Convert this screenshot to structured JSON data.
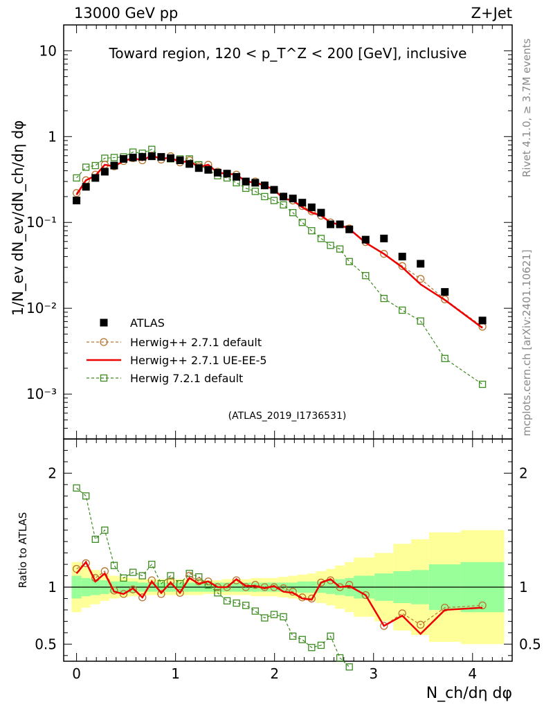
{
  "header": {
    "energy": "13000 GeV pp",
    "process": "Z+Jet"
  },
  "side": {
    "rivet": "Rivet 4.1.0, ≥ 3.7M events",
    "mcplots": "mcplots.cern.ch [arXiv:2401.10621]"
  },
  "chart_data": [
    {
      "type": "scatter",
      "panel": "main",
      "title": "Toward region, 120 < p_T^Z < 200 [GeV], inclusive",
      "analysis_label": "(ATLAS_2019_I1736531)",
      "ylabel": "1/N_ev dN_ev/dN_ch/dη dφ",
      "yscale": "log",
      "ylim": [
        0.0003,
        20
      ],
      "xlim": [
        -0.13,
        4.4
      ],
      "yticks": [
        {
          "value": 10,
          "label": "10"
        },
        {
          "value": 1,
          "label": "1"
        },
        {
          "value": 0.1,
          "label": "10⁻¹"
        },
        {
          "value": 0.01,
          "label": "10⁻²"
        },
        {
          "value": 0.001,
          "label": "10⁻³"
        }
      ],
      "x": [
        0.0,
        0.095,
        0.19,
        0.285,
        0.38,
        0.475,
        0.57,
        0.665,
        0.76,
        0.855,
        0.95,
        1.045,
        1.14,
        1.235,
        1.33,
        1.425,
        1.52,
        1.615,
        1.71,
        1.805,
        1.9,
        1.995,
        2.09,
        2.185,
        2.28,
        2.375,
        2.47,
        2.565,
        2.66,
        2.755,
        2.92,
        3.105,
        3.29,
        3.475,
        3.72,
        4.1
      ],
      "series": [
        {
          "name": "ATLAS",
          "marker": "square",
          "color": "#000000",
          "values": [
            0.18,
            0.26,
            0.33,
            0.39,
            0.46,
            0.55,
            0.57,
            0.58,
            0.59,
            0.58,
            0.56,
            0.53,
            0.48,
            0.43,
            0.41,
            0.38,
            0.37,
            0.34,
            0.3,
            0.29,
            0.27,
            0.24,
            0.2,
            0.19,
            0.17,
            0.15,
            0.13,
            0.095,
            0.095,
            0.083,
            0.063,
            0.065,
            0.04,
            0.033,
            0.0155,
            0.0072
          ]
        },
        {
          "name": "Herwig++ 2.7.1 default",
          "marker": "circle",
          "color": "#b8732e",
          "dash": "4,3",
          "values": [
            0.22,
            0.31,
            0.36,
            0.47,
            0.45,
            0.52,
            0.56,
            0.53,
            0.6,
            0.54,
            0.59,
            0.5,
            0.53,
            0.45,
            0.47,
            0.39,
            0.37,
            0.36,
            0.3,
            0.3,
            0.27,
            0.24,
            0.2,
            0.18,
            0.155,
            0.135,
            0.12,
            0.1,
            0.095,
            0.085,
            0.059,
            0.043,
            0.031,
            0.022,
            0.0127,
            0.0061
          ]
        },
        {
          "name": "Herwig++ 2.7.1 UE-EE-5",
          "marker": "line",
          "color": "#ee0000",
          "values": [
            0.21,
            0.31,
            0.35,
            0.47,
            0.45,
            0.52,
            0.56,
            0.53,
            0.6,
            0.55,
            0.57,
            0.5,
            0.52,
            0.44,
            0.47,
            0.38,
            0.37,
            0.36,
            0.3,
            0.29,
            0.27,
            0.24,
            0.19,
            0.18,
            0.15,
            0.13,
            0.12,
            0.1,
            0.094,
            0.084,
            0.058,
            0.043,
            0.03,
            0.019,
            0.0125,
            0.0059
          ]
        },
        {
          "name": "Herwig 7.2.1 default",
          "marker": "open-square",
          "color": "#3a8a1e",
          "dash": "4,3",
          "values": [
            0.33,
            0.44,
            0.46,
            0.56,
            0.57,
            0.58,
            0.66,
            0.64,
            0.71,
            0.58,
            0.55,
            0.55,
            0.55,
            0.47,
            0.41,
            0.35,
            0.33,
            0.29,
            0.25,
            0.23,
            0.2,
            0.18,
            0.16,
            0.13,
            0.1,
            0.08,
            0.065,
            0.054,
            0.049,
            0.035,
            0.024,
            0.013,
            0.0095,
            0.0071,
            0.0026,
            0.0013
          ]
        }
      ],
      "legend_position": "left-middle"
    },
    {
      "type": "line",
      "panel": "ratio",
      "ylabel": "Ratio to ATLAS",
      "xlabel": "N_ch/dη dφ",
      "ylim": [
        0.35,
        2.3
      ],
      "yticks": [
        {
          "value": 2,
          "label": "2"
        },
        {
          "value": 1,
          "label": "1"
        },
        {
          "value": 0.5,
          "label": "0.5"
        }
      ],
      "xticks": [
        {
          "value": 0,
          "label": "0"
        },
        {
          "value": 1,
          "label": "1"
        },
        {
          "value": 2,
          "label": "2"
        },
        {
          "value": 3,
          "label": "3"
        },
        {
          "value": 4,
          "label": "4"
        }
      ],
      "band_edges": [
        -0.05,
        0.05,
        0.14,
        0.24,
        0.33,
        0.43,
        0.52,
        0.62,
        0.71,
        0.81,
        0.9,
        1.0,
        1.09,
        1.19,
        1.28,
        1.38,
        1.47,
        1.57,
        1.66,
        1.76,
        1.85,
        1.95,
        2.04,
        2.14,
        2.23,
        2.33,
        2.42,
        2.52,
        2.61,
        2.71,
        2.8,
        3.01,
        3.2,
        3.38,
        3.56,
        3.88,
        4.32
      ],
      "band_inner": [
        0.1,
        0.08,
        0.07,
        0.06,
        0.05,
        0.05,
        0.05,
        0.04,
        0.04,
        0.04,
        0.04,
        0.04,
        0.04,
        0.04,
        0.04,
        0.04,
        0.04,
        0.04,
        0.04,
        0.04,
        0.04,
        0.04,
        0.04,
        0.04,
        0.05,
        0.05,
        0.05,
        0.06,
        0.07,
        0.08,
        0.1,
        0.12,
        0.14,
        0.15,
        0.2,
        0.22
      ],
      "band_outer": [
        0.22,
        0.18,
        0.15,
        0.12,
        0.1,
        0.09,
        0.08,
        0.07,
        0.07,
        0.07,
        0.07,
        0.07,
        0.07,
        0.07,
        0.06,
        0.06,
        0.07,
        0.07,
        0.07,
        0.08,
        0.08,
        0.08,
        0.09,
        0.1,
        0.11,
        0.12,
        0.14,
        0.16,
        0.19,
        0.22,
        0.26,
        0.3,
        0.38,
        0.42,
        0.48,
        0.5
      ],
      "band_colors": {
        "inner": "#99ff99",
        "outer": "#ffff99"
      },
      "series": [
        {
          "name": "Herwig++ 2.7.1 default",
          "values": [
            1.16,
            1.21,
            1.08,
            1.14,
            0.97,
            0.94,
            0.98,
            0.91,
            1.06,
            0.94,
            1.05,
            0.95,
            1.1,
            1.05,
            1.05,
            1.0,
            1.0,
            1.06,
            1.0,
            1.02,
            1.0,
            1.0,
            0.99,
            0.96,
            0.91,
            0.9,
            1.04,
            1.06,
            1.0,
            1.02,
            0.93,
            0.66,
            0.77,
            0.67,
            0.82,
            0.84
          ]
        },
        {
          "name": "Herwig++ 2.7.1 UE-EE-5",
          "values": [
            1.12,
            1.22,
            1.05,
            1.12,
            0.96,
            0.94,
            0.99,
            0.91,
            1.05,
            0.95,
            1.04,
            0.95,
            1.08,
            1.03,
            1.05,
            1.0,
            1.0,
            1.07,
            1.01,
            1.01,
            0.99,
            1.01,
            0.96,
            0.95,
            0.9,
            0.89,
            1.04,
            1.07,
            1.0,
            1.01,
            0.93,
            0.66,
            0.75,
            0.59,
            0.8,
            0.82
          ]
        },
        {
          "name": "Herwig 7.2.1 default",
          "values": [
            1.87,
            1.8,
            1.42,
            1.5,
            1.19,
            1.08,
            1.13,
            1.1,
            1.2,
            1.03,
            1.1,
            1.03,
            1.12,
            1.09,
            1.02,
            0.95,
            0.88,
            0.86,
            0.84,
            0.79,
            0.73,
            0.76,
            0.74,
            0.57,
            0.54,
            0.47,
            0.49,
            0.57,
            0.38,
            0.3
          ]
        }
      ]
    }
  ]
}
